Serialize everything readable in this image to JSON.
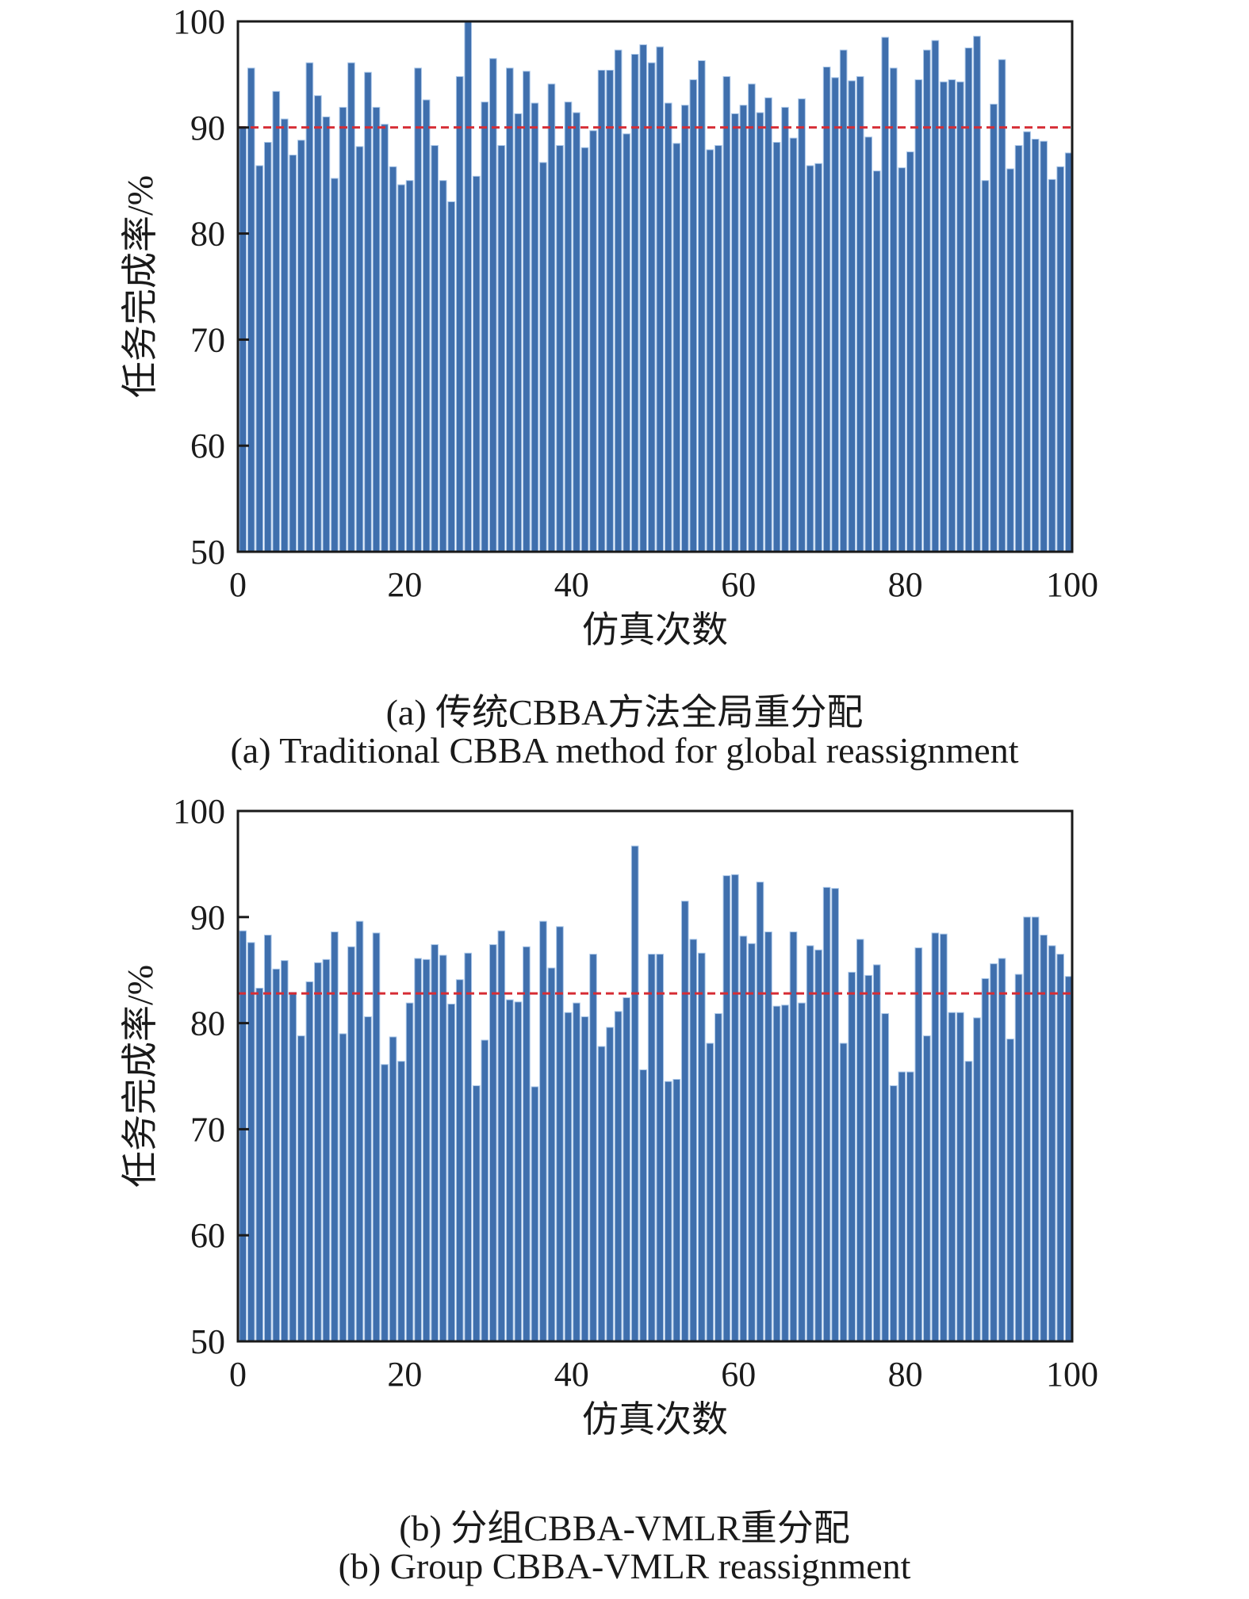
{
  "chart_data": [
    {
      "type": "bar",
      "ylabel": "任务完成率/%",
      "xlabel": "仿真次数",
      "caption_cn": "(a) 传统CBBA方法全局重分配",
      "caption_en": "(a) Traditional CBBA method for global reassignment",
      "xlim": [
        0,
        100
      ],
      "ylim": [
        50,
        100
      ],
      "xticks": [
        "0",
        "20",
        "40",
        "60",
        "80",
        "100"
      ],
      "yticks": [
        "50",
        "60",
        "70",
        "80",
        "90",
        "100"
      ],
      "reference_line": 90.0,
      "bar_color": "#3f6fad",
      "line_color": "#d62c34",
      "x": [
        1,
        2,
        3,
        4,
        5,
        6,
        7,
        8,
        9,
        10,
        11,
        12,
        13,
        14,
        15,
        16,
        17,
        18,
        19,
        20,
        21,
        22,
        23,
        24,
        25,
        26,
        27,
        28,
        29,
        30,
        31,
        32,
        33,
        34,
        35,
        36,
        37,
        38,
        39,
        40,
        41,
        42,
        43,
        44,
        45,
        46,
        47,
        48,
        49,
        50,
        51,
        52,
        53,
        54,
        55,
        56,
        57,
        58,
        59,
        60,
        61,
        62,
        63,
        64,
        65,
        66,
        67,
        68,
        69,
        70,
        71,
        72,
        73,
        74,
        75,
        76,
        77,
        78,
        79,
        80,
        81,
        82,
        83,
        84,
        85,
        86,
        87,
        88,
        89,
        90,
        91,
        92,
        93,
        94,
        95,
        96,
        97,
        98,
        99,
        100
      ],
      "values": [
        90.0,
        95.6,
        86.4,
        88.6,
        93.4,
        90.8,
        87.4,
        88.8,
        96.1,
        93.0,
        91.0,
        85.2,
        91.9,
        96.1,
        88.2,
        95.2,
        91.9,
        90.3,
        86.3,
        84.6,
        85.0,
        95.6,
        92.6,
        88.3,
        85.0,
        83.0,
        94.8,
        100.0,
        85.4,
        92.4,
        96.5,
        88.3,
        95.6,
        91.3,
        95.3,
        92.3,
        86.7,
        94.1,
        88.3,
        92.4,
        91.4,
        88.1,
        89.7,
        95.4,
        95.4,
        97.3,
        89.4,
        96.9,
        97.8,
        96.1,
        97.6,
        92.3,
        88.5,
        92.1,
        94.5,
        96.3,
        87.9,
        88.3,
        94.8,
        91.3,
        92.1,
        94.1,
        91.4,
        92.8,
        88.6,
        91.9,
        89.0,
        92.7,
        86.4,
        86.6,
        95.7,
        94.7,
        97.3,
        94.4,
        94.8,
        89.1,
        85.9,
        98.5,
        95.6,
        86.2,
        87.7,
        94.5,
        97.3,
        98.2,
        94.3,
        94.5,
        94.3,
        97.5,
        98.6,
        85.0,
        92.2,
        96.4,
        86.1,
        88.3,
        89.6,
        88.9,
        88.7,
        85.1,
        86.3,
        87.6
      ]
    },
    {
      "type": "bar",
      "ylabel": "任务完成率/%",
      "xlabel": "仿真次数",
      "caption_cn": "(b) 分组CBBA-VMLR重分配",
      "caption_en": "(b) Group CBBA-VMLR reassignment",
      "xlim": [
        0,
        100
      ],
      "ylim": [
        50,
        100
      ],
      "xticks": [
        "0",
        "20",
        "40",
        "60",
        "80",
        "100"
      ],
      "yticks": [
        "50",
        "60",
        "70",
        "80",
        "90",
        "100"
      ],
      "reference_line": 82.8,
      "bar_color": "#3f6fad",
      "line_color": "#d62c34",
      "x": [
        1,
        2,
        3,
        4,
        5,
        6,
        7,
        8,
        9,
        10,
        11,
        12,
        13,
        14,
        15,
        16,
        17,
        18,
        19,
        20,
        21,
        22,
        23,
        24,
        25,
        26,
        27,
        28,
        29,
        30,
        31,
        32,
        33,
        34,
        35,
        36,
        37,
        38,
        39,
        40,
        41,
        42,
        43,
        44,
        45,
        46,
        47,
        48,
        49,
        50,
        51,
        52,
        53,
        54,
        55,
        56,
        57,
        58,
        59,
        60,
        61,
        62,
        63,
        64,
        65,
        66,
        67,
        68,
        69,
        70,
        71,
        72,
        73,
        74,
        75,
        76,
        77,
        78,
        79,
        80,
        81,
        82,
        83,
        84,
        85,
        86,
        87,
        88,
        89,
        90,
        91,
        92,
        93,
        94,
        95,
        96,
        97,
        98,
        99,
        100
      ],
      "values": [
        88.7,
        87.6,
        83.3,
        88.3,
        85.1,
        85.9,
        82.9,
        78.8,
        83.9,
        85.7,
        86.0,
        88.6,
        79.0,
        87.2,
        89.6,
        80.6,
        88.5,
        76.1,
        78.7,
        76.4,
        81.9,
        86.1,
        86.0,
        87.4,
        86.4,
        81.8,
        84.1,
        86.6,
        74.1,
        78.4,
        87.4,
        88.7,
        82.2,
        82.0,
        87.2,
        74.0,
        89.6,
        85.2,
        89.1,
        81.0,
        81.9,
        80.6,
        86.5,
        77.8,
        79.6,
        81.1,
        82.4,
        96.7,
        75.6,
        86.5,
        86.5,
        74.5,
        74.7,
        91.5,
        87.9,
        86.6,
        78.1,
        80.9,
        93.9,
        94.0,
        88.2,
        87.5,
        93.3,
        88.6,
        81.6,
        81.7,
        88.6,
        81.9,
        87.3,
        86.9,
        92.8,
        92.7,
        78.1,
        84.8,
        87.9,
        84.5,
        85.5,
        80.9,
        74.1,
        75.4,
        75.4,
        87.1,
        78.8,
        88.5,
        88.4,
        81.0,
        81.0,
        76.4,
        80.5,
        84.2,
        85.6,
        86.1,
        78.5,
        84.6,
        90.0,
        90.0,
        88.3,
        87.3,
        86.5,
        84.4
      ]
    }
  ]
}
